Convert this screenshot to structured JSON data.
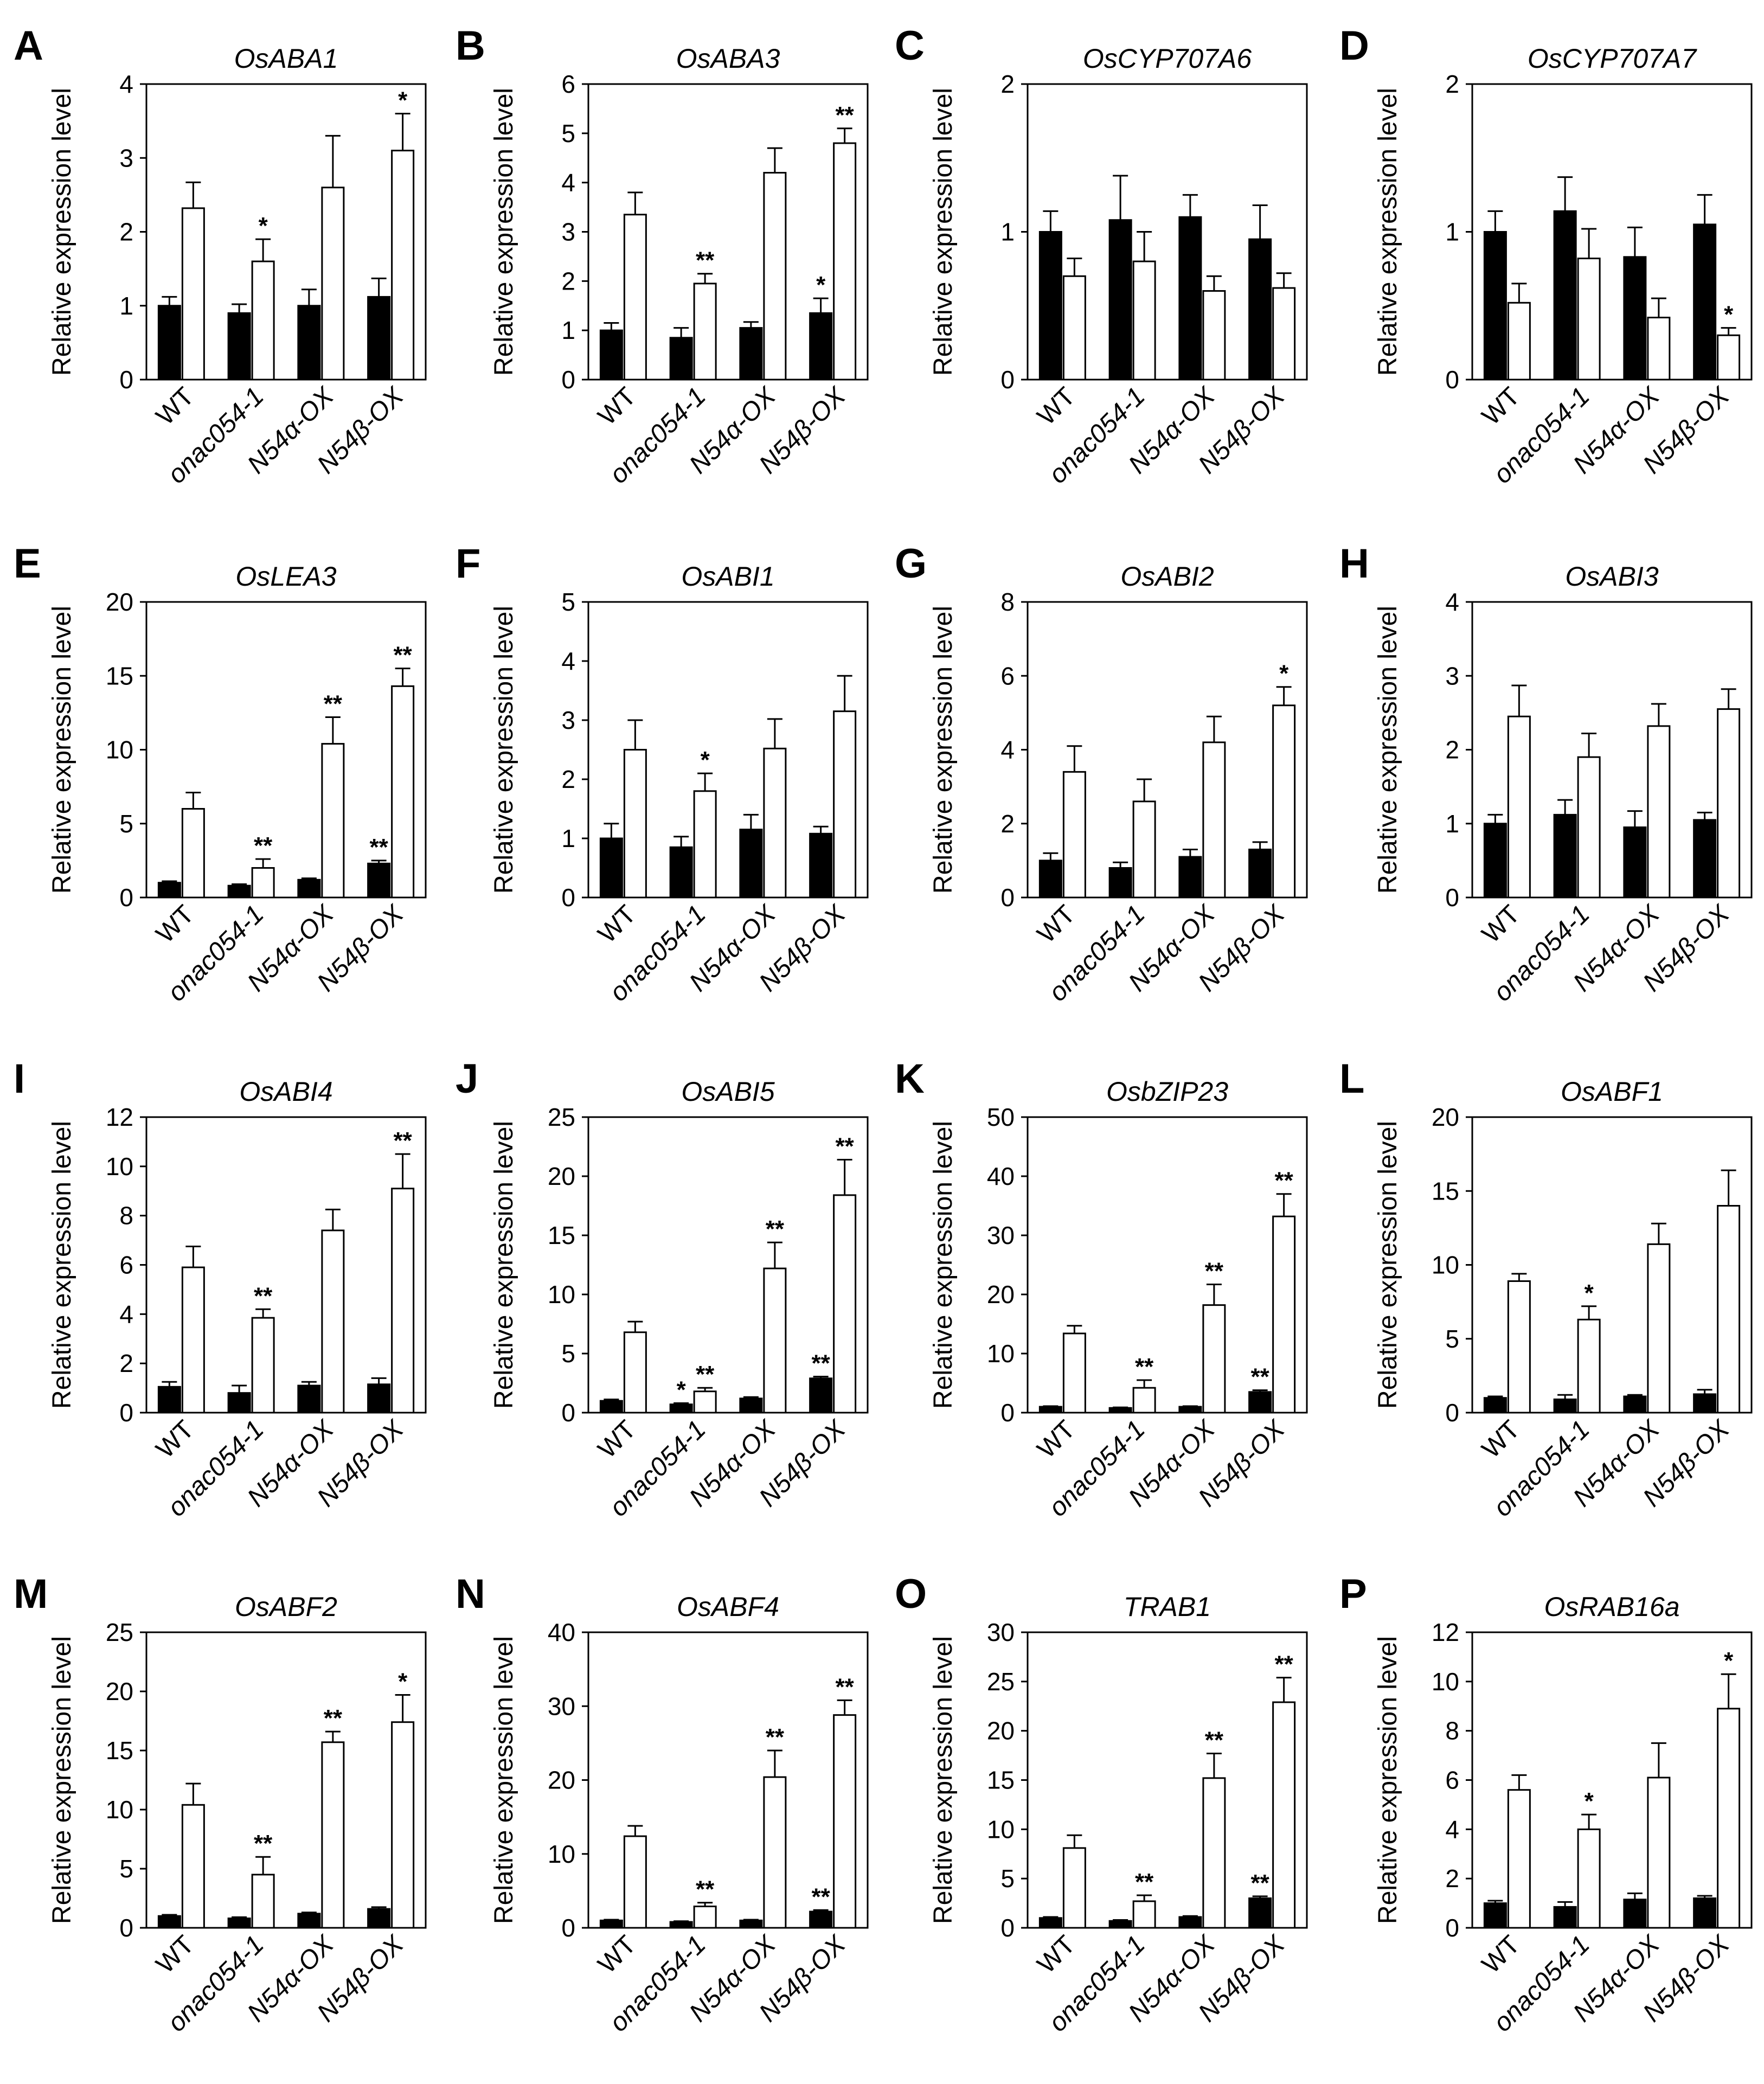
{
  "figure": {
    "ylabel": "Relative expression level",
    "categories": [
      "WT",
      "onac054-1",
      "N54α-OX",
      "N54β-OX"
    ],
    "category_italic": [
      false,
      true,
      true,
      true
    ],
    "series_colors": {
      "filled": "#000000",
      "open": "#ffffff"
    }
  },
  "chart_data": [
    {
      "panel": "A",
      "type": "bar",
      "title": "OsABA1",
      "ylabel": "Relative expression level",
      "ylim": [
        0,
        4
      ],
      "ticks": [
        0,
        1,
        2,
        3,
        4
      ],
      "categories": [
        "WT",
        "onac054-1",
        "N54α-OX",
        "N54β-OX"
      ],
      "series": [
        {
          "name": "filled",
          "values": [
            1.0,
            0.9,
            1.0,
            1.12
          ],
          "errors": [
            0.12,
            0.12,
            0.22,
            0.25
          ],
          "sig": [
            "",
            "",
            "",
            ""
          ]
        },
        {
          "name": "open",
          "values": [
            2.32,
            1.6,
            2.6,
            3.1
          ],
          "errors": [
            0.35,
            0.3,
            0.7,
            0.5
          ],
          "sig": [
            "",
            "*",
            "",
            "*"
          ]
        }
      ]
    },
    {
      "panel": "B",
      "type": "bar",
      "title": "OsABA3",
      "ylabel": "Relative expression level",
      "ylim": [
        0,
        6
      ],
      "ticks": [
        0,
        1,
        2,
        3,
        4,
        5,
        6
      ],
      "categories": [
        "WT",
        "onac054-1",
        "N54α-OX",
        "N54β-OX"
      ],
      "series": [
        {
          "name": "filled",
          "values": [
            1.0,
            0.85,
            1.05,
            1.35
          ],
          "errors": [
            0.15,
            0.2,
            0.12,
            0.3
          ],
          "sig": [
            "",
            "",
            "",
            "*"
          ]
        },
        {
          "name": "open",
          "values": [
            3.35,
            1.95,
            4.2,
            4.8
          ],
          "errors": [
            0.45,
            0.2,
            0.5,
            0.3
          ],
          "sig": [
            "",
            "**",
            "",
            "**"
          ]
        }
      ]
    },
    {
      "panel": "C",
      "type": "bar",
      "title": "OsCYP707A6",
      "ylabel": "Relative expression level",
      "ylim": [
        0,
        2
      ],
      "ticks": [
        0,
        1,
        2
      ],
      "categories": [
        "WT",
        "onac054-1",
        "N54α-OX",
        "N54β-OX"
      ],
      "series": [
        {
          "name": "filled",
          "values": [
            1.0,
            1.08,
            1.1,
            0.95
          ],
          "errors": [
            0.14,
            0.3,
            0.15,
            0.23
          ],
          "sig": [
            "",
            "",
            "",
            ""
          ]
        },
        {
          "name": "open",
          "values": [
            0.7,
            0.8,
            0.6,
            0.62
          ],
          "errors": [
            0.12,
            0.2,
            0.1,
            0.1
          ],
          "sig": [
            "",
            "",
            "",
            ""
          ]
        }
      ]
    },
    {
      "panel": "D",
      "type": "bar",
      "title": "OsCYP707A7",
      "ylabel": "Relative expression level",
      "ylim": [
        0,
        2
      ],
      "ticks": [
        0,
        1,
        2
      ],
      "categories": [
        "WT",
        "onac054-1",
        "N54α-OX",
        "N54β-OX"
      ],
      "series": [
        {
          "name": "filled",
          "values": [
            1.0,
            1.14,
            0.83,
            1.05
          ],
          "errors": [
            0.14,
            0.23,
            0.2,
            0.2
          ],
          "sig": [
            "",
            "",
            "",
            ""
          ]
        },
        {
          "name": "open",
          "values": [
            0.52,
            0.82,
            0.42,
            0.3
          ],
          "errors": [
            0.13,
            0.2,
            0.13,
            0.05
          ],
          "sig": [
            "",
            "",
            "",
            "*"
          ]
        }
      ]
    },
    {
      "panel": "E",
      "type": "bar",
      "title": "OsLEA3",
      "ylabel": "Relative expression level",
      "ylim": [
        0,
        20
      ],
      "ticks": [
        0,
        5,
        10,
        15,
        20
      ],
      "categories": [
        "WT",
        "onac054-1",
        "N54α-OX",
        "N54β-OX"
      ],
      "series": [
        {
          "name": "filled",
          "values": [
            1.0,
            0.8,
            1.2,
            2.3
          ],
          "errors": [
            0.1,
            0.1,
            0.1,
            0.2
          ],
          "sig": [
            "",
            "",
            "",
            "**"
          ]
        },
        {
          "name": "open",
          "values": [
            6.0,
            2.0,
            10.4,
            14.3
          ],
          "errors": [
            1.1,
            0.6,
            1.8,
            1.2
          ],
          "sig": [
            "",
            "**",
            "**",
            "**"
          ]
        }
      ]
    },
    {
      "panel": "F",
      "type": "bar",
      "title": "OsABI1",
      "ylabel": "Relative expression level",
      "ylim": [
        0,
        5
      ],
      "ticks": [
        0,
        1,
        2,
        3,
        4,
        5
      ],
      "categories": [
        "WT",
        "onac054-1",
        "N54α-OX",
        "N54β-OX"
      ],
      "series": [
        {
          "name": "filled",
          "values": [
            1.0,
            0.85,
            1.15,
            1.08
          ],
          "errors": [
            0.25,
            0.18,
            0.25,
            0.12
          ],
          "sig": [
            "",
            "",
            "",
            ""
          ]
        },
        {
          "name": "open",
          "values": [
            2.5,
            1.8,
            2.52,
            3.15
          ],
          "errors": [
            0.5,
            0.3,
            0.5,
            0.6
          ],
          "sig": [
            "",
            "*",
            "",
            ""
          ]
        }
      ]
    },
    {
      "panel": "G",
      "type": "bar",
      "title": "OsABI2",
      "ylabel": "Relative expression level",
      "ylim": [
        0,
        8
      ],
      "ticks": [
        0,
        2,
        4,
        6,
        8
      ],
      "categories": [
        "WT",
        "onac054-1",
        "N54α-OX",
        "N54β-OX"
      ],
      "series": [
        {
          "name": "filled",
          "values": [
            1.0,
            0.8,
            1.1,
            1.3
          ],
          "errors": [
            0.2,
            0.15,
            0.2,
            0.2
          ],
          "sig": [
            "",
            "",
            "",
            ""
          ]
        },
        {
          "name": "open",
          "values": [
            3.4,
            2.6,
            4.2,
            5.2
          ],
          "errors": [
            0.7,
            0.6,
            0.7,
            0.5
          ],
          "sig": [
            "",
            "",
            "",
            "*"
          ]
        }
      ]
    },
    {
      "panel": "H",
      "type": "bar",
      "title": "OsABI3",
      "ylabel": "Relative expression level",
      "ylim": [
        0,
        4
      ],
      "ticks": [
        0,
        1,
        2,
        3,
        4
      ],
      "categories": [
        "WT",
        "onac054-1",
        "N54α-OX",
        "N54β-OX"
      ],
      "series": [
        {
          "name": "filled",
          "values": [
            1.0,
            1.12,
            0.95,
            1.05
          ],
          "errors": [
            0.12,
            0.2,
            0.22,
            0.1
          ],
          "sig": [
            "",
            "",
            "",
            ""
          ]
        },
        {
          "name": "open",
          "values": [
            2.45,
            1.9,
            2.32,
            2.55
          ],
          "errors": [
            0.42,
            0.32,
            0.3,
            0.27
          ],
          "sig": [
            "",
            "",
            "",
            ""
          ]
        }
      ]
    },
    {
      "panel": "I",
      "type": "bar",
      "title": "OsABI4",
      "ylabel": "Relative expression level",
      "ylim": [
        0,
        12
      ],
      "ticks": [
        0,
        2,
        4,
        6,
        8,
        10,
        12
      ],
      "categories": [
        "WT",
        "onac054-1",
        "N54α-OX",
        "N54β-OX"
      ],
      "series": [
        {
          "name": "filled",
          "values": [
            1.05,
            0.8,
            1.1,
            1.15
          ],
          "errors": [
            0.2,
            0.3,
            0.15,
            0.25
          ],
          "sig": [
            "",
            "",
            "",
            ""
          ]
        },
        {
          "name": "open",
          "values": [
            5.9,
            3.85,
            7.4,
            9.1
          ],
          "errors": [
            0.85,
            0.35,
            0.85,
            1.4
          ],
          "sig": [
            "",
            "**",
            "",
            "**"
          ]
        }
      ]
    },
    {
      "panel": "J",
      "type": "bar",
      "title": "OsABI5",
      "ylabel": "Relative expression level",
      "ylim": [
        0,
        25
      ],
      "ticks": [
        0,
        5,
        10,
        15,
        20,
        25
      ],
      "categories": [
        "WT",
        "onac054-1",
        "N54α-OX",
        "N54β-OX"
      ],
      "series": [
        {
          "name": "filled",
          "values": [
            1.0,
            0.7,
            1.2,
            2.9
          ],
          "errors": [
            0.12,
            0.1,
            0.12,
            0.15
          ],
          "sig": [
            "",
            "*",
            "",
            "**"
          ]
        },
        {
          "name": "open",
          "values": [
            6.8,
            1.8,
            12.2,
            18.4
          ],
          "errors": [
            0.9,
            0.3,
            2.2,
            3.0
          ],
          "sig": [
            "",
            "**",
            "**",
            "**"
          ]
        }
      ]
    },
    {
      "panel": "K",
      "type": "bar",
      "title": "OsbZIP23",
      "ylabel": "Relative expression level",
      "ylim": [
        0,
        50
      ],
      "ticks": [
        0,
        10,
        20,
        30,
        40,
        50
      ],
      "categories": [
        "WT",
        "onac054-1",
        "N54α-OX",
        "N54β-OX"
      ],
      "series": [
        {
          "name": "filled",
          "values": [
            1.0,
            0.8,
            1.0,
            3.5
          ],
          "errors": [
            0.1,
            0.1,
            0.1,
            0.3
          ],
          "sig": [
            "",
            "",
            "",
            "**"
          ]
        },
        {
          "name": "open",
          "values": [
            13.4,
            4.2,
            18.2,
            33.2
          ],
          "errors": [
            1.3,
            1.3,
            3.5,
            3.8
          ],
          "sig": [
            "",
            "**",
            "**",
            "**"
          ]
        }
      ]
    },
    {
      "panel": "L",
      "type": "bar",
      "title": "OsABF1",
      "ylabel": "Relative expression level",
      "ylim": [
        0,
        20
      ],
      "ticks": [
        0,
        5,
        10,
        15,
        20
      ],
      "categories": [
        "WT",
        "onac054-1",
        "N54α-OX",
        "N54β-OX"
      ],
      "series": [
        {
          "name": "filled",
          "values": [
            1.0,
            0.9,
            1.1,
            1.25
          ],
          "errors": [
            0.1,
            0.3,
            0.1,
            0.3
          ],
          "sig": [
            "",
            "",
            "",
            ""
          ]
        },
        {
          "name": "open",
          "values": [
            8.9,
            6.3,
            11.4,
            14.0
          ],
          "errors": [
            0.5,
            0.9,
            1.4,
            2.4
          ],
          "sig": [
            "",
            "*",
            "",
            ""
          ]
        }
      ]
    },
    {
      "panel": "M",
      "type": "bar",
      "title": "OsABF2",
      "ylabel": "Relative expression level",
      "ylim": [
        0,
        25
      ],
      "ticks": [
        0,
        5,
        10,
        15,
        20,
        25
      ],
      "categories": [
        "WT",
        "onac054-1",
        "N54α-OX",
        "N54β-OX"
      ],
      "series": [
        {
          "name": "filled",
          "values": [
            1.0,
            0.8,
            1.2,
            1.6
          ],
          "errors": [
            0.1,
            0.1,
            0.1,
            0.15
          ],
          "sig": [
            "",
            "",
            "",
            ""
          ]
        },
        {
          "name": "open",
          "values": [
            10.4,
            4.5,
            15.7,
            17.4
          ],
          "errors": [
            1.8,
            1.5,
            0.9,
            2.3
          ],
          "sig": [
            "",
            "**",
            "**",
            "*"
          ]
        }
      ]
    },
    {
      "panel": "N",
      "type": "bar",
      "title": "OsABF4",
      "ylabel": "Relative expression level",
      "ylim": [
        0,
        40
      ],
      "ticks": [
        0,
        10,
        20,
        30,
        40
      ],
      "categories": [
        "WT",
        "onac054-1",
        "N54α-OX",
        "N54β-OX"
      ],
      "series": [
        {
          "name": "filled",
          "values": [
            1.0,
            0.8,
            1.0,
            2.2
          ],
          "errors": [
            0.1,
            0.1,
            0.1,
            0.2
          ],
          "sig": [
            "",
            "",
            "",
            "**"
          ]
        },
        {
          "name": "open",
          "values": [
            12.4,
            2.9,
            20.4,
            28.8
          ],
          "errors": [
            1.4,
            0.5,
            3.6,
            2.0
          ],
          "sig": [
            "",
            "**",
            "**",
            "**"
          ]
        }
      ]
    },
    {
      "panel": "O",
      "type": "bar",
      "title": "TRAB1",
      "ylabel": "Relative expression level",
      "ylim": [
        0,
        30
      ],
      "ticks": [
        0,
        5,
        10,
        15,
        20,
        25,
        30
      ],
      "categories": [
        "WT",
        "onac054-1",
        "N54α-OX",
        "N54β-OX"
      ],
      "series": [
        {
          "name": "filled",
          "values": [
            1.0,
            0.7,
            1.1,
            3.0
          ],
          "errors": [
            0.1,
            0.1,
            0.1,
            0.2
          ],
          "sig": [
            "",
            "",
            "",
            "**"
          ]
        },
        {
          "name": "open",
          "values": [
            8.1,
            2.7,
            15.2,
            22.9
          ],
          "errors": [
            1.3,
            0.6,
            2.5,
            2.5
          ],
          "sig": [
            "",
            "**",
            "**",
            "**"
          ]
        }
      ]
    },
    {
      "panel": "P",
      "type": "bar",
      "title": "OsRAB16a",
      "ylabel": "Relative expression level",
      "ylim": [
        0,
        12
      ],
      "ticks": [
        0,
        2,
        4,
        6,
        8,
        10,
        12
      ],
      "categories": [
        "WT",
        "onac054-1",
        "N54α-OX",
        "N54β-OX"
      ],
      "series": [
        {
          "name": "filled",
          "values": [
            1.0,
            0.85,
            1.15,
            1.2
          ],
          "errors": [
            0.1,
            0.2,
            0.25,
            0.1
          ],
          "sig": [
            "",
            "",
            "",
            ""
          ]
        },
        {
          "name": "open",
          "values": [
            5.6,
            4.0,
            6.1,
            8.9
          ],
          "errors": [
            0.6,
            0.6,
            1.4,
            1.4
          ],
          "sig": [
            "",
            "*",
            "",
            "*"
          ]
        }
      ]
    }
  ]
}
